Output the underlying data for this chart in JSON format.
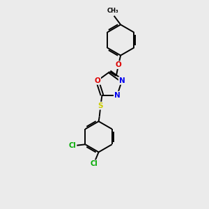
{
  "background_color": "#ebebeb",
  "atom_colors": {
    "C": "#000000",
    "N": "#0000ee",
    "O": "#dd0000",
    "S": "#cccc00",
    "Cl": "#00aa00"
  },
  "figsize": [
    3.0,
    3.0
  ],
  "dpi": 100,
  "lw": 1.4
}
